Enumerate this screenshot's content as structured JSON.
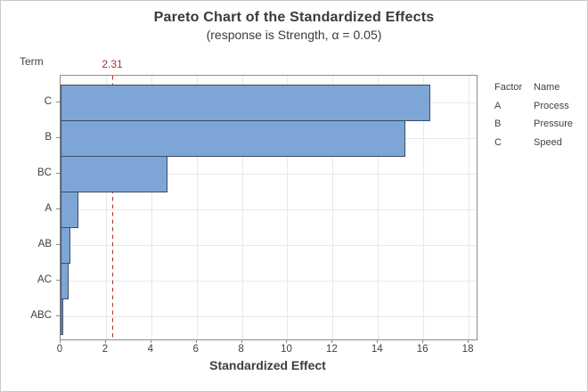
{
  "chart_data": {
    "type": "bar",
    "orientation": "horizontal",
    "title": "Pareto Chart of the Standardized Effects",
    "subtitle": "(response is Strength, α = 0.05)",
    "xlabel": "Standardized Effect",
    "ylabel": "Term",
    "categories": [
      "C",
      "B",
      "BC",
      "A",
      "AB",
      "AC",
      "ABC"
    ],
    "values": [
      16.3,
      15.2,
      4.7,
      0.8,
      0.45,
      0.35,
      0.08
    ],
    "xlim": [
      0,
      18.35
    ],
    "xticks": [
      0,
      2,
      4,
      6,
      8,
      10,
      12,
      14,
      16,
      18
    ],
    "grid": "on",
    "legend_position": "right",
    "reference_line": {
      "value": 2.31,
      "label": "2.31",
      "style": "dashed",
      "color": "#a8322f"
    },
    "colors": {
      "bar_fill": "#7da6d7",
      "bar_border": "#3d4c63",
      "gridline": "#e8e8e8",
      "axis": "#8c8c8c"
    }
  },
  "legend": {
    "headers": [
      "Factor",
      "Name"
    ],
    "rows": [
      {
        "factor": "A",
        "name": "Process"
      },
      {
        "factor": "B",
        "name": "Pressure"
      },
      {
        "factor": "C",
        "name": "Speed"
      }
    ]
  }
}
